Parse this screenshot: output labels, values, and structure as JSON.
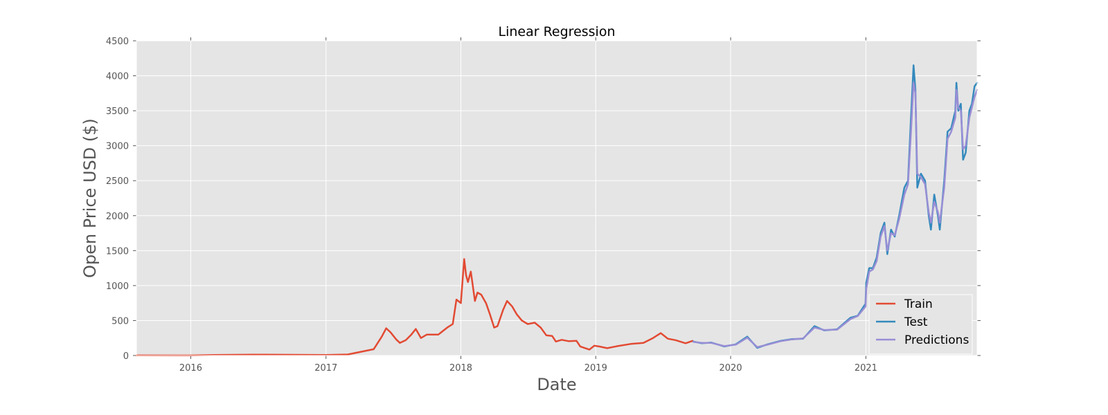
{
  "chart_data": {
    "type": "line",
    "title": "Linear Regression",
    "xlabel": "Date",
    "ylabel": "Open Price USD ($)",
    "xlim": [
      "2015-08-07",
      "2021-10-29"
    ],
    "ylim": [
      0,
      4500
    ],
    "x_ticks": [
      "2016-01-01",
      "2017-01-01",
      "2018-01-01",
      "2019-01-01",
      "2020-01-01",
      "2021-01-01"
    ],
    "x_tick_labels": [
      "2016",
      "2017",
      "2018",
      "2019",
      "2020",
      "2021"
    ],
    "y_ticks": [
      0,
      500,
      1000,
      1500,
      2000,
      2500,
      3000,
      3500,
      4000,
      4500
    ],
    "grid": true,
    "legend_position": "lower-right",
    "background": "#e5e5e5",
    "series": [
      {
        "name": "Train",
        "color": "#e24a33",
        "points": [
          [
            "2015-08-07",
            2
          ],
          [
            "2016-01-01",
            1
          ],
          [
            "2016-03-01",
            8
          ],
          [
            "2016-06-15",
            13
          ],
          [
            "2016-09-01",
            11
          ],
          [
            "2017-01-01",
            8
          ],
          [
            "2017-03-01",
            15
          ],
          [
            "2017-04-01",
            48
          ],
          [
            "2017-05-10",
            90
          ],
          [
            "2017-06-01",
            270
          ],
          [
            "2017-06-13",
            390
          ],
          [
            "2017-06-25",
            330
          ],
          [
            "2017-07-10",
            230
          ],
          [
            "2017-07-20",
            180
          ],
          [
            "2017-08-05",
            220
          ],
          [
            "2017-08-20",
            300
          ],
          [
            "2017-09-01",
            380
          ],
          [
            "2017-09-15",
            250
          ],
          [
            "2017-10-01",
            300
          ],
          [
            "2017-11-01",
            300
          ],
          [
            "2017-11-25",
            400
          ],
          [
            "2017-12-10",
            450
          ],
          [
            "2017-12-20",
            800
          ],
          [
            "2018-01-01",
            750
          ],
          [
            "2018-01-10",
            1380
          ],
          [
            "2018-01-15",
            1150
          ],
          [
            "2018-01-20",
            1050
          ],
          [
            "2018-01-28",
            1200
          ],
          [
            "2018-02-08",
            780
          ],
          [
            "2018-02-15",
            900
          ],
          [
            "2018-02-25",
            870
          ],
          [
            "2018-03-10",
            750
          ],
          [
            "2018-03-20",
            600
          ],
          [
            "2018-04-01",
            400
          ],
          [
            "2018-04-10",
            420
          ],
          [
            "2018-04-25",
            650
          ],
          [
            "2018-05-06",
            780
          ],
          [
            "2018-05-20",
            700
          ],
          [
            "2018-06-01",
            590
          ],
          [
            "2018-06-15",
            500
          ],
          [
            "2018-07-01",
            450
          ],
          [
            "2018-07-20",
            470
          ],
          [
            "2018-08-05",
            400
          ],
          [
            "2018-08-20",
            290
          ],
          [
            "2018-09-05",
            280
          ],
          [
            "2018-09-15",
            200
          ],
          [
            "2018-10-01",
            225
          ],
          [
            "2018-10-20",
            205
          ],
          [
            "2018-11-10",
            210
          ],
          [
            "2018-11-20",
            130
          ],
          [
            "2018-12-01",
            110
          ],
          [
            "2018-12-15",
            85
          ],
          [
            "2018-12-28",
            140
          ],
          [
            "2019-01-10",
            130
          ],
          [
            "2019-02-01",
            105
          ],
          [
            "2019-03-01",
            135
          ],
          [
            "2019-04-05",
            165
          ],
          [
            "2019-05-10",
            180
          ],
          [
            "2019-06-05",
            250
          ],
          [
            "2019-06-26",
            320
          ],
          [
            "2019-07-15",
            240
          ],
          [
            "2019-08-05",
            220
          ],
          [
            "2019-09-01",
            175
          ],
          [
            "2019-09-20",
            210
          ]
        ]
      },
      {
        "name": "Test",
        "color": "#348abd",
        "points": [
          [
            "2019-09-22",
            200
          ],
          [
            "2019-10-15",
            175
          ],
          [
            "2019-11-10",
            185
          ],
          [
            "2019-12-15",
            130
          ],
          [
            "2020-01-15",
            160
          ],
          [
            "2020-02-15",
            270
          ],
          [
            "2020-03-13",
            110
          ],
          [
            "2020-04-10",
            160
          ],
          [
            "2020-05-15",
            210
          ],
          [
            "2020-06-15",
            235
          ],
          [
            "2020-07-15",
            240
          ],
          [
            "2020-08-15",
            420
          ],
          [
            "2020-09-10",
            360
          ],
          [
            "2020-10-15",
            375
          ],
          [
            "2020-11-20",
            540
          ],
          [
            "2020-12-10",
            570
          ],
          [
            "2020-12-31",
            740
          ],
          [
            "2021-01-02",
            1040
          ],
          [
            "2021-01-10",
            1250
          ],
          [
            "2021-01-20",
            1250
          ],
          [
            "2021-01-30",
            1400
          ],
          [
            "2021-02-10",
            1750
          ],
          [
            "2021-02-20",
            1900
          ],
          [
            "2021-02-28",
            1450
          ],
          [
            "2021-03-10",
            1800
          ],
          [
            "2021-03-20",
            1700
          ],
          [
            "2021-04-01",
            2000
          ],
          [
            "2021-04-15",
            2400
          ],
          [
            "2021-04-25",
            2500
          ],
          [
            "2021-05-03",
            3400
          ],
          [
            "2021-05-10",
            4150
          ],
          [
            "2021-05-15",
            3800
          ],
          [
            "2021-05-20",
            2400
          ],
          [
            "2021-05-30",
            2600
          ],
          [
            "2021-06-10",
            2500
          ],
          [
            "2021-06-20",
            2000
          ],
          [
            "2021-06-26",
            1800
          ],
          [
            "2021-07-05",
            2300
          ],
          [
            "2021-07-15",
            2000
          ],
          [
            "2021-07-20",
            1800
          ],
          [
            "2021-08-01",
            2500
          ],
          [
            "2021-08-05",
            2800
          ],
          [
            "2021-08-10",
            3200
          ],
          [
            "2021-08-20",
            3250
          ],
          [
            "2021-08-31",
            3500
          ],
          [
            "2021-09-03",
            3900
          ],
          [
            "2021-09-08",
            3500
          ],
          [
            "2021-09-15",
            3600
          ],
          [
            "2021-09-21",
            2800
          ],
          [
            "2021-09-28",
            2900
          ],
          [
            "2021-10-08",
            3500
          ],
          [
            "2021-10-15",
            3600
          ],
          [
            "2021-10-22",
            3850
          ],
          [
            "2021-10-29",
            3900
          ]
        ]
      },
      {
        "name": "Predictions",
        "color": "#988ed5",
        "points": [
          [
            "2019-09-22",
            195
          ],
          [
            "2019-10-15",
            180
          ],
          [
            "2019-11-10",
            180
          ],
          [
            "2019-12-15",
            135
          ],
          [
            "2020-01-15",
            155
          ],
          [
            "2020-02-15",
            255
          ],
          [
            "2020-03-13",
            120
          ],
          [
            "2020-04-10",
            155
          ],
          [
            "2020-05-15",
            205
          ],
          [
            "2020-06-15",
            230
          ],
          [
            "2020-07-15",
            245
          ],
          [
            "2020-08-15",
            400
          ],
          [
            "2020-09-10",
            365
          ],
          [
            "2020-10-15",
            370
          ],
          [
            "2020-11-20",
            520
          ],
          [
            "2020-12-10",
            565
          ],
          [
            "2020-12-31",
            700
          ],
          [
            "2021-01-02",
            950
          ],
          [
            "2021-01-10",
            1200
          ],
          [
            "2021-01-20",
            1230
          ],
          [
            "2021-01-30",
            1350
          ],
          [
            "2021-02-10",
            1700
          ],
          [
            "2021-02-20",
            1850
          ],
          [
            "2021-02-28",
            1500
          ],
          [
            "2021-03-10",
            1750
          ],
          [
            "2021-03-20",
            1720
          ],
          [
            "2021-04-01",
            1950
          ],
          [
            "2021-04-15",
            2300
          ],
          [
            "2021-04-25",
            2450
          ],
          [
            "2021-05-03",
            3200
          ],
          [
            "2021-05-10",
            3900
          ],
          [
            "2021-05-15",
            3750
          ],
          [
            "2021-05-20",
            2600
          ],
          [
            "2021-05-30",
            2550
          ],
          [
            "2021-06-10",
            2450
          ],
          [
            "2021-06-20",
            2050
          ],
          [
            "2021-06-26",
            1900
          ],
          [
            "2021-07-05",
            2200
          ],
          [
            "2021-07-15",
            2050
          ],
          [
            "2021-07-20",
            1900
          ],
          [
            "2021-08-01",
            2400
          ],
          [
            "2021-08-05",
            2700
          ],
          [
            "2021-08-10",
            3100
          ],
          [
            "2021-08-20",
            3200
          ],
          [
            "2021-08-31",
            3400
          ],
          [
            "2021-09-03",
            3800
          ],
          [
            "2021-09-08",
            3550
          ],
          [
            "2021-09-15",
            3500
          ],
          [
            "2021-09-21",
            2950
          ],
          [
            "2021-09-28",
            3000
          ],
          [
            "2021-10-08",
            3400
          ],
          [
            "2021-10-15",
            3550
          ],
          [
            "2021-10-22",
            3700
          ],
          [
            "2021-10-29",
            3800
          ]
        ]
      }
    ]
  }
}
